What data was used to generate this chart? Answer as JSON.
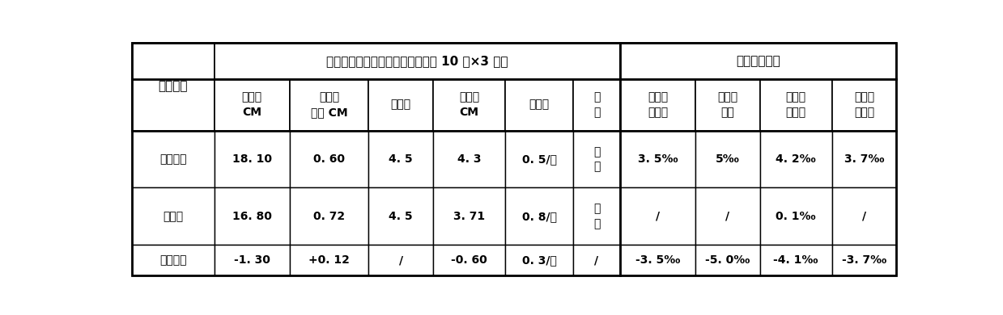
{
  "bg_color": "#ffffff",
  "border_color": "#000000",
  "font_color": "#000000",
  "group_header1": "菊苗素质调查（随机取样，样本数 10 株×3 次）",
  "group_header2": "病虫危害比较",
  "row0_label": "育苗方式",
  "col_headers": [
    "苗均高\nCM",
    "地面径\n平均 CM",
    "叶对数",
    "叶间距\nCM",
    "分枝数",
    "色\n泽",
    "地老虎\n危害率",
    "蚜螨危\n害率",
    "叶斑病\n发病率",
    "猝倒病\n发病率"
  ],
  "rows": [
    [
      "营养育苗",
      "18. 10",
      "0. 60",
      "4. 5",
      "4. 3",
      "0. 5/株",
      "浓\n绿",
      "3. 5‰",
      "5‰",
      "4. 2‰",
      "3. 7‰"
    ],
    [
      "本发明",
      "16. 80",
      "0. 72",
      "4. 5",
      "3. 71",
      "0. 8/株",
      "浓\n绿",
      "/",
      "/",
      "0. 1‰",
      "/"
    ],
    [
      "两者比较",
      "-1. 30",
      "+0. 12",
      "/",
      "-0. 60",
      "0. 3/株",
      "/",
      "-3. 5‰",
      "-5. 0‰",
      "-4. 1‰",
      "-3. 7‰"
    ]
  ],
  "figsize": [
    12.39,
    3.9
  ],
  "dpi": 100
}
